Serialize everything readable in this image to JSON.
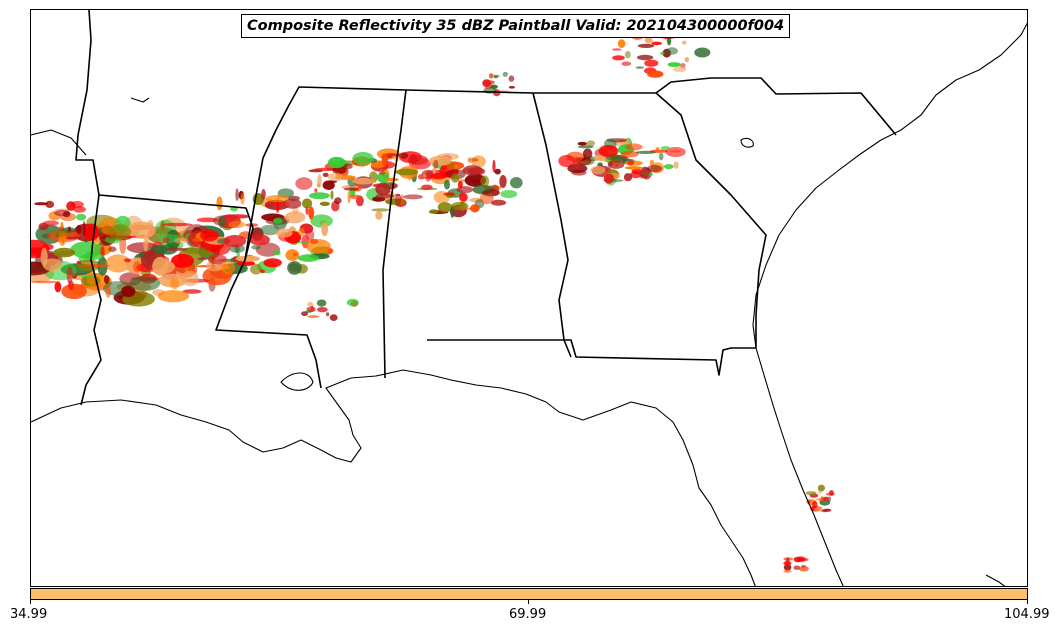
{
  "title": "Composite Reflectivity 35 dBZ Paintball Valid: 202104300000f004",
  "colorbar": {
    "color": "#fdbf6f",
    "ticks": [
      "34.99",
      "69.99",
      "104.99"
    ]
  },
  "member_colors": [
    "#ff0000",
    "#ff7f00",
    "#e31a1c",
    "#33cc33",
    "#8b0000",
    "#808000",
    "#f4a460",
    "#2e6b2e",
    "#b22222",
    "#ff4500"
  ],
  "map": {
    "region": "Southeastern United States",
    "features": [
      "state borders",
      "coastline",
      "ensemble reflectivity paintball"
    ]
  }
}
